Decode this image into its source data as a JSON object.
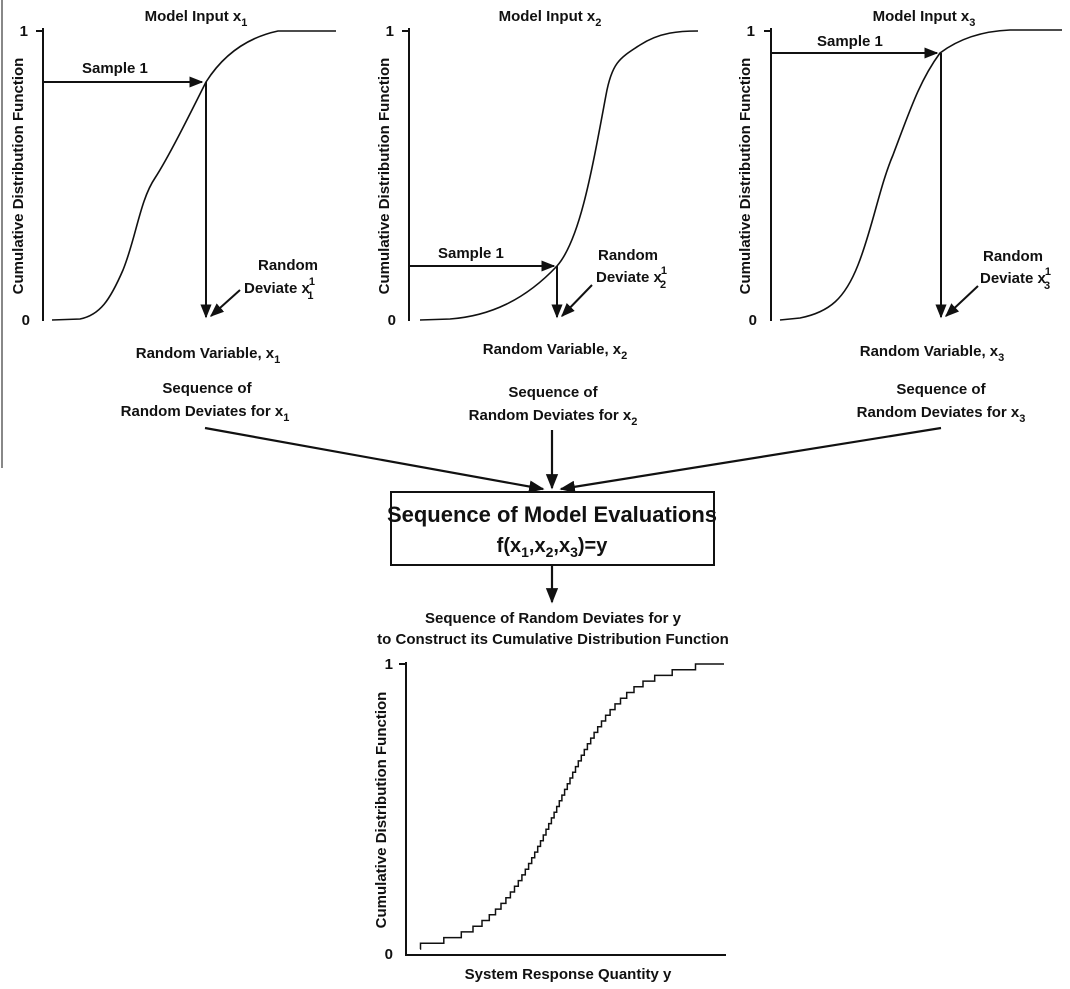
{
  "colors": {
    "ink": "#111111",
    "background": "#ffffff"
  },
  "panels": [
    {
      "title": "Model Input x",
      "title_sub": "1",
      "ylabel": "Cumulative Distribution Function",
      "xlabel": "Random Variable, x",
      "xlabel_sub": "1",
      "y_tick_top": "1",
      "y_tick_bottom": "0",
      "sample_label": "Sample 1",
      "deviate_label_line1": "Random",
      "deviate_label_line2": "Deviate x",
      "deviate_sub": "1",
      "deviate_sup": "1",
      "sequence_line1": "Sequence of",
      "sequence_line2": "Random Deviates for x",
      "sequence_sub": "1"
    },
    {
      "title": "Model Input x",
      "title_sub": "2",
      "ylabel": "Cumulative Distribution Function",
      "xlabel": "Random Variable, x",
      "xlabel_sub": "2",
      "y_tick_top": "1",
      "y_tick_bottom": "0",
      "sample_label": "Sample 1",
      "deviate_label_line1": "Random",
      "deviate_label_line2": "Deviate x",
      "deviate_sub": "2",
      "deviate_sup": "1",
      "sequence_line1": "Sequence of",
      "sequence_line2": "Random Deviates for x",
      "sequence_sub": "2"
    },
    {
      "title": "Model Input x",
      "title_sub": "3",
      "ylabel": "Cumulative Distribution Function",
      "xlabel": "Random Variable, x",
      "xlabel_sub": "3",
      "y_tick_top": "1",
      "y_tick_bottom": "0",
      "sample_label": "Sample 1",
      "deviate_label_line1": "Random",
      "deviate_label_line2": "Deviate x",
      "deviate_sub": "3",
      "deviate_sup": "1",
      "sequence_line1": "Sequence of",
      "sequence_line2": "Random Deviates for x",
      "sequence_sub": "3"
    }
  ],
  "evaluation_box": {
    "title": "Sequence of Model Evaluations",
    "formula": {
      "f": "f(x",
      "s1": "1",
      "c1": ",x",
      "s2": "2",
      "c2": ",x",
      "s3": "3",
      "end": ")=y"
    }
  },
  "output": {
    "caption_line1": "Sequence of Random Deviates for y",
    "caption_line2": "to Construct its Cumulative Distribution Function",
    "ylabel": "Cumulative Distribution Function",
    "xlabel": "System Response Quantity y",
    "y_tick_top": "1",
    "y_tick_bottom": "0"
  }
}
